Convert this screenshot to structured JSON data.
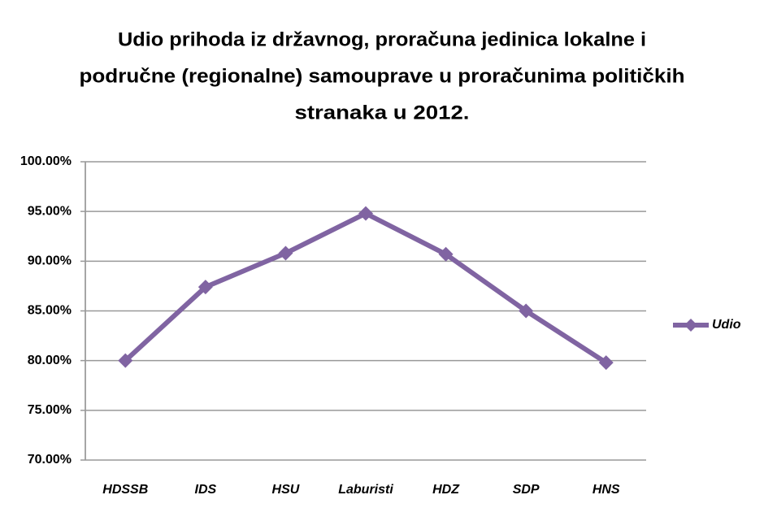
{
  "chart_data": {
    "type": "line",
    "title": [
      "Udio prihoda iz državnog, proračuna jedinica lokalne i",
      "područne (regionalne) samouprave u proračunima političkih",
      "stranaka u 2012."
    ],
    "categories": [
      "HDSSB",
      "IDS",
      "HSU",
      "Laburisti",
      "HDZ",
      "SDP",
      "HNS"
    ],
    "series": [
      {
        "name": "Udio",
        "color": "#8064a2",
        "values": [
          80.0,
          87.4,
          90.8,
          94.8,
          90.7,
          85.0,
          79.8
        ]
      }
    ],
    "ylim": [
      70,
      100
    ],
    "yticks": [
      {
        "value": 70,
        "label": "70.00%"
      },
      {
        "value": 75,
        "label": "75.00%"
      },
      {
        "value": 80,
        "label": "80.00%"
      },
      {
        "value": 85,
        "label": "85.00%"
      },
      {
        "value": 90,
        "label": "90.00%"
      },
      {
        "value": 95,
        "label": "95.00%"
      },
      {
        "value": 100,
        "label": "100.00%"
      }
    ],
    "grid": true,
    "legend": "right"
  }
}
